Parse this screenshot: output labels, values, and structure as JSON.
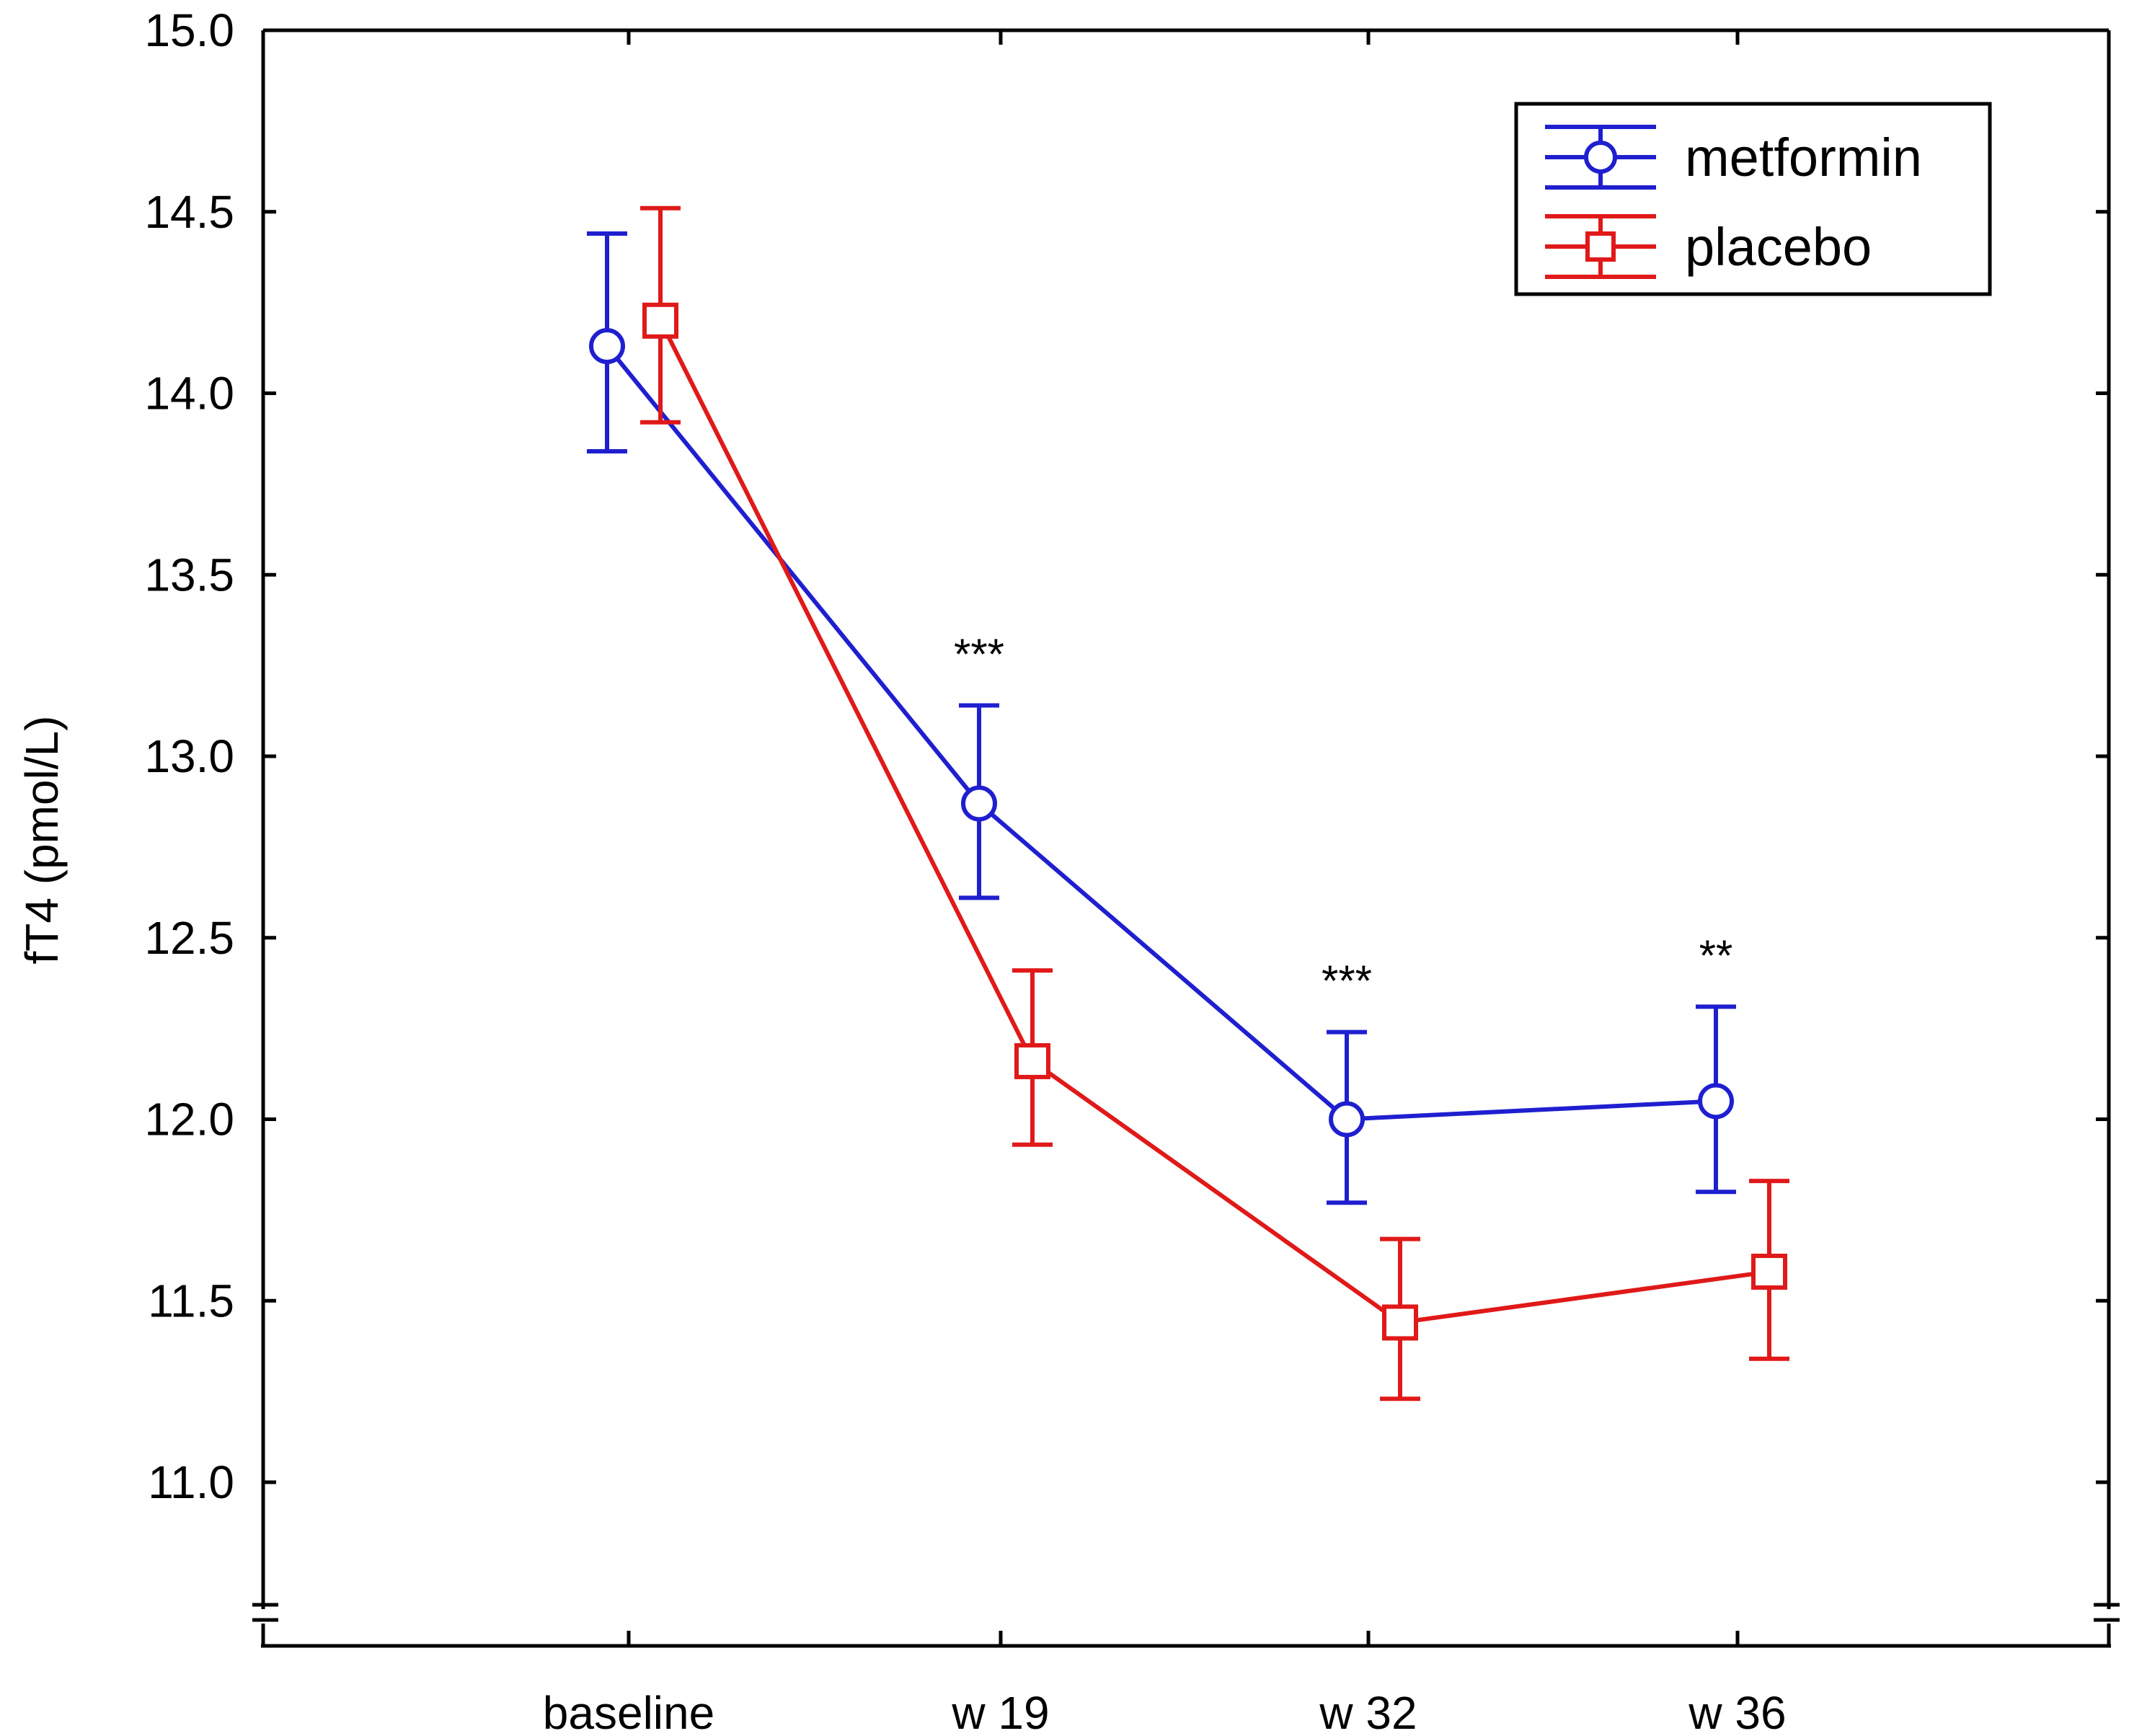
{
  "chart_data": {
    "type": "line",
    "title": "",
    "xlabel": "",
    "ylabel": "fT4 (pmol/L)",
    "categories": [
      "baseline",
      "w 19",
      "w 32",
      "w 36"
    ],
    "ylim": [
      10.7,
      15.0
    ],
    "yticks": [
      "11.0",
      "11.5",
      "12.0",
      "12.5",
      "13.0",
      "13.5",
      "14.0",
      "14.5",
      "15.0"
    ],
    "axis_break": true,
    "grid": false,
    "legend_position": "top-right",
    "series": [
      {
        "name": "metformin",
        "color": "#1f1fd0",
        "marker": "circle",
        "values": [
          14.13,
          12.87,
          12.0,
          12.05
        ],
        "err_low": [
          13.84,
          12.61,
          11.77,
          11.8
        ],
        "err_high": [
          14.44,
          13.14,
          12.24,
          12.31
        ]
      },
      {
        "name": "placebo",
        "color": "#e01919",
        "marker": "square",
        "values": [
          14.2,
          12.16,
          11.44,
          11.58
        ],
        "err_low": [
          13.92,
          11.93,
          11.23,
          11.34
        ],
        "err_high": [
          14.51,
          12.41,
          11.67,
          11.83
        ]
      }
    ],
    "annotations": [
      {
        "category": "w 19",
        "text": "***",
        "y": 13.3
      },
      {
        "category": "w 32",
        "text": "***",
        "y": 12.4
      },
      {
        "category": "w 36",
        "text": "**",
        "y": 12.47
      }
    ]
  }
}
